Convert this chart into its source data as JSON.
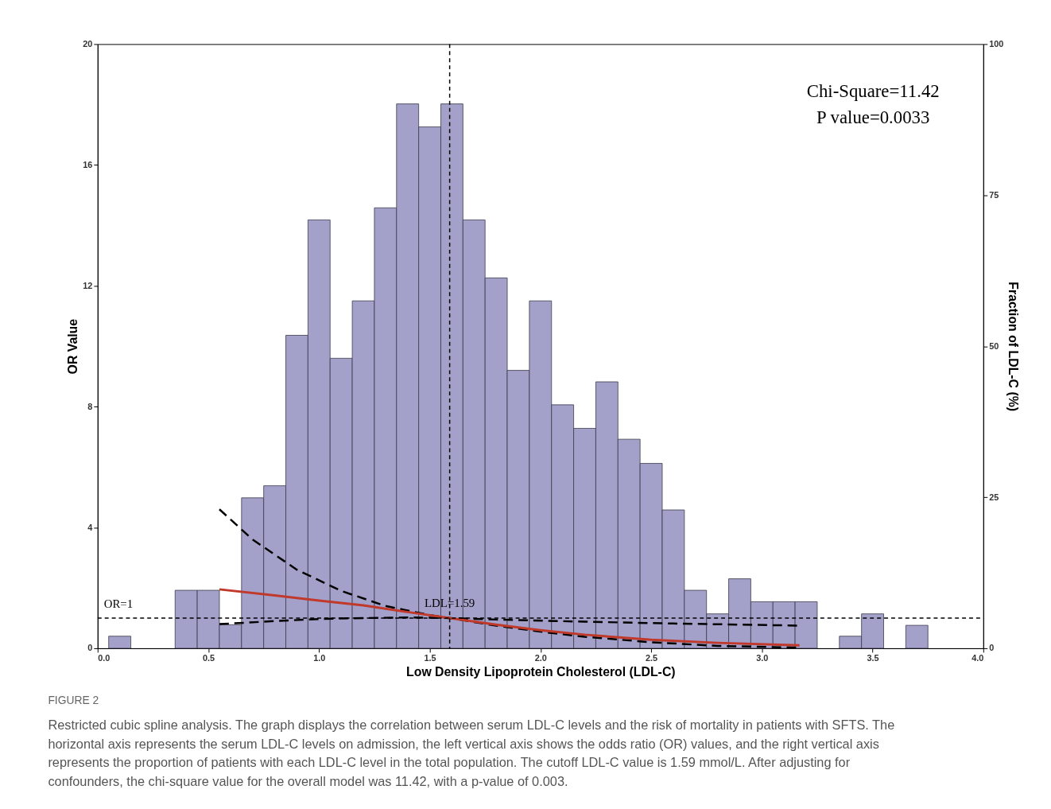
{
  "chart_data": {
    "type": "histogram",
    "xlabel": "Low Density Lipoprotein Cholesterol (LDL-C)",
    "ylabel": "OR Value",
    "y2label": "Fraction of LDL-C (%)",
    "xlim": [
      0,
      4
    ],
    "xticks": [
      {
        "value": 0,
        "label": "0.0"
      },
      0.5,
      {
        "value": 1,
        "label": "1.0"
      },
      1.5,
      {
        "value": 2,
        "label": "2.0"
      },
      2.5,
      {
        "value": 3,
        "label": "3.0"
      },
      3.5,
      {
        "value": 4,
        "label": "4.0"
      }
    ],
    "ylim": [
      0,
      20
    ],
    "yticks": [
      0,
      4,
      8,
      12,
      16,
      20
    ],
    "y2lim": [
      0,
      100
    ],
    "y2ticks": [
      0,
      25,
      50,
      75,
      100
    ],
    "grid": false,
    "series": [
      {
        "axis": "y2",
        "color": "#a3a0c9",
        "bins": [
          0.05,
          0.15,
          0.25,
          0.35,
          0.45,
          0.55,
          0.65,
          0.75,
          0.85,
          0.95,
          1.05,
          1.15,
          1.25,
          1.35,
          1.45,
          1.55,
          1.65,
          1.75,
          1.85,
          1.95,
          2.05,
          2.15,
          2.25,
          2.35,
          2.45,
          2.55,
          2.65,
          2.75,
          2.85,
          2.95,
          3.05,
          3.15,
          3.25,
          3.35,
          3.45,
          3.55,
          3.65,
          3.75
        ],
        "values": [
          2.0,
          null,
          null,
          9.6,
          9.6,
          3.9,
          24.9,
          26.9,
          51.8,
          70.9,
          48.0,
          57.5,
          72.9,
          90.1,
          86.3,
          90.1,
          70.9,
          61.3,
          46.0,
          57.5,
          40.3,
          36.4,
          44.1,
          34.6,
          30.6,
          22.9,
          9.6,
          5.7,
          11.5,
          7.7,
          7.7,
          7.7,
          null,
          2.0,
          5.7,
          null,
          3.8
        ]
      },
      {
        "type": "line",
        "color": "#000000",
        "line_style": "dashed",
        "x": [
          0.55,
          0.7,
          0.9,
          1.1,
          1.3,
          1.5,
          1.59,
          1.8,
          2.0,
          2.2,
          2.5,
          2.8,
          3.17
        ],
        "values": [
          4.6,
          3.6,
          2.6,
          1.9,
          1.4,
          1.1,
          1.0,
          0.75,
          0.55,
          0.38,
          0.2,
          0.08,
          0.02
        ]
      },
      {
        "type": "line",
        "color": "#000000",
        "line_style": "dashed",
        "x": [
          0.55,
          0.8,
          1.0,
          1.2,
          1.4,
          1.59,
          1.8,
          2.2,
          2.6,
          3.17
        ],
        "values": [
          0.8,
          0.9,
          0.97,
          1.0,
          1.02,
          1.0,
          0.95,
          0.88,
          0.82,
          0.75
        ]
      },
      {
        "type": "line",
        "color": "#c0392b",
        "line_style": "solid",
        "x": [
          0.55,
          0.8,
          1.0,
          1.2,
          1.4,
          1.59,
          1.8,
          2.0,
          2.2,
          2.5,
          2.8,
          3.17
        ],
        "values": [
          1.95,
          1.75,
          1.58,
          1.42,
          1.2,
          1.0,
          0.78,
          0.6,
          0.45,
          0.28,
          0.18,
          0.1
        ]
      }
    ],
    "ref_lines": [
      {
        "axis": "y",
        "value": 1,
        "label": "OR=1",
        "color": "#000000",
        "line_style": "dashed"
      },
      {
        "axis": "x",
        "value": 1.59,
        "label": "LDL=1.59",
        "color": "#000000",
        "line_style": "dashed"
      }
    ],
    "annotations": [
      "Chi-Square=11.42",
      "P value=0.0033",
      "FIGURE 2",
      "Restricted cubic spline analysis. The graph displays the correlation between serum LDL-C levels and the risk of mortality in patients with SFTS. The horizontal axis represents the serum LDL-C levels on admission, the left vertical axis shows the odds ratio (OR) values, and the right vertical axis represents the proportion of patients with each LDL-C level in the total population. The cutoff LDL-C value is 1.59 mmol/L. After adjusting for confounders, the chi-square value for the overall model was 11.42, with a p-value of 0.003."
    ]
  }
}
